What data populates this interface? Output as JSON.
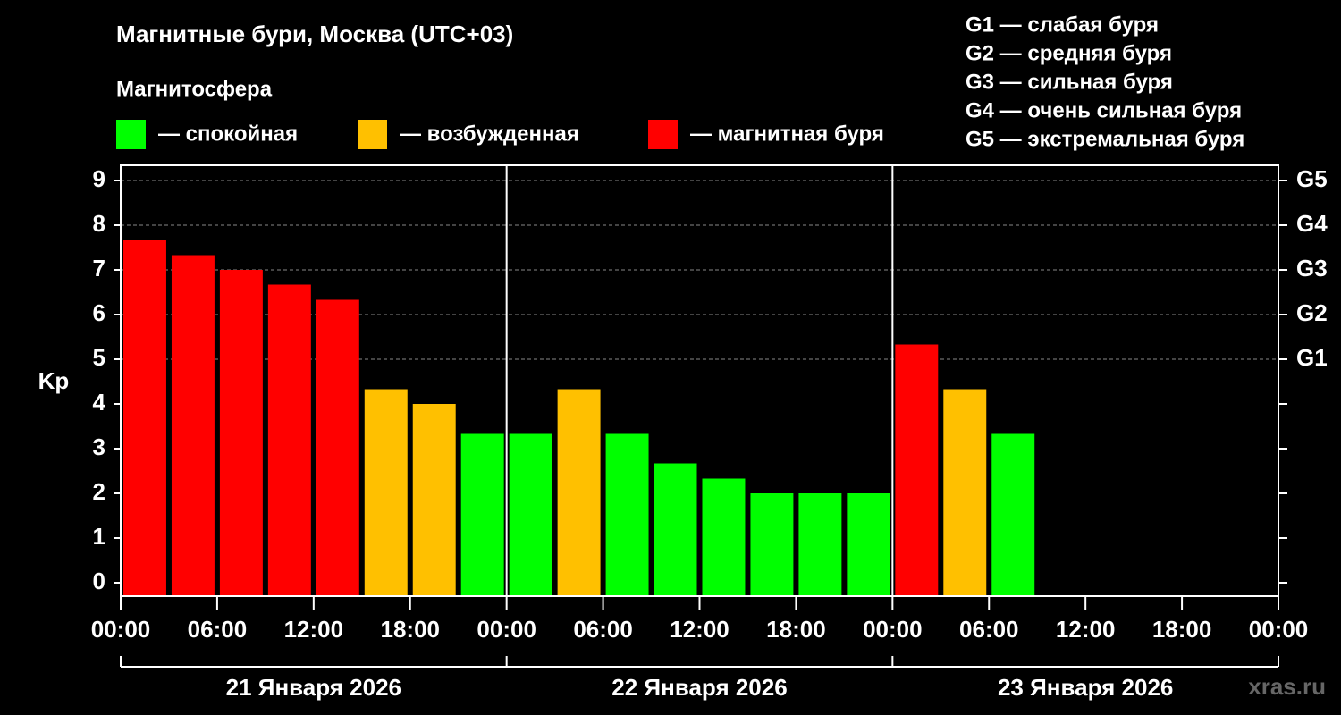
{
  "chart_data": {
    "type": "bar",
    "title": "Магнитные бури, Москва (UTC+03)",
    "legend_title": "Магнитосфера",
    "legend": [
      {
        "name": "— спокойная",
        "color": "#00ff00"
      },
      {
        "name": "— возбужденная",
        "color": "#ffc000"
      },
      {
        "name": "— магнитная буря",
        "color": "#ff0000"
      }
    ],
    "scale_notes": [
      "G1 — слабая буря",
      "G2 — средняя буря",
      "G3 — сильная буря",
      "G4 — очень сильная буря",
      "G5 — экстремальная буря"
    ],
    "ylabel": "Kp",
    "x": [
      0,
      3,
      6,
      9,
      12,
      15,
      18,
      21,
      24,
      27,
      30,
      33,
      36,
      39,
      42,
      45,
      48,
      51,
      54,
      57,
      60,
      63,
      66,
      69
    ],
    "values": [
      7.67,
      7.33,
      7.0,
      6.67,
      6.33,
      4.33,
      4.0,
      3.33,
      3.33,
      4.33,
      3.33,
      2.67,
      2.33,
      2.0,
      2.0,
      2.0,
      5.33,
      4.33,
      3.33,
      null,
      null,
      null,
      null,
      null
    ],
    "colors": [
      "#ff0000",
      "#ff0000",
      "#ff0000",
      "#ff0000",
      "#ff0000",
      "#ffc000",
      "#ffc000",
      "#00ff00",
      "#00ff00",
      "#ffc000",
      "#00ff00",
      "#00ff00",
      "#00ff00",
      "#00ff00",
      "#00ff00",
      "#00ff00",
      "#ff0000",
      "#ffc000",
      "#00ff00",
      null,
      null,
      null,
      null,
      null
    ],
    "xlim": [
      0,
      72
    ],
    "xticks": [
      {
        "value": 0,
        "label": "00:00"
      },
      {
        "value": 6,
        "label": "06:00"
      },
      {
        "value": 12,
        "label": "12:00"
      },
      {
        "value": 18,
        "label": "18:00"
      },
      {
        "value": 24,
        "label": "00:00"
      },
      {
        "value": 30,
        "label": "06:00"
      },
      {
        "value": 36,
        "label": "12:00"
      },
      {
        "value": 42,
        "label": "18:00"
      },
      {
        "value": 48,
        "label": "00:00"
      },
      {
        "value": 54,
        "label": "06:00"
      },
      {
        "value": 60,
        "label": "12:00"
      },
      {
        "value": 66,
        "label": "18:00"
      },
      {
        "value": 72,
        "label": "00:00"
      }
    ],
    "days": [
      {
        "label": "21 Января 2026",
        "start": 0,
        "end": 24
      },
      {
        "label": "22 Января 2026",
        "start": 24,
        "end": 48
      },
      {
        "label": "23 Января 2026",
        "start": 48,
        "end": 72
      }
    ],
    "ylim": [
      -0.3,
      9.34
    ],
    "yticks": [
      0,
      1,
      2,
      3,
      4,
      5,
      6,
      7,
      8,
      9
    ],
    "y2lim": [
      -0.3,
      9.34
    ],
    "y2ticks": [
      {
        "value": 5,
        "label": "G1"
      },
      {
        "value": 6,
        "label": "G2"
      },
      {
        "value": 7,
        "label": "G3"
      },
      {
        "value": 8,
        "label": "G4"
      },
      {
        "value": 9,
        "label": "G5"
      }
    ],
    "grid": true,
    "watermark": "xras.ru"
  }
}
